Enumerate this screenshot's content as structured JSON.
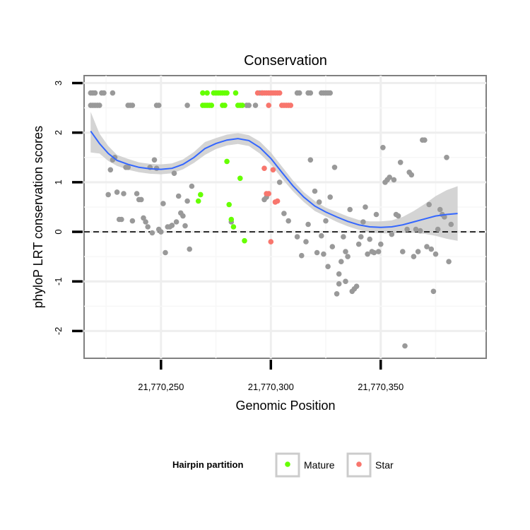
{
  "chart_data": {
    "type": "scatter",
    "title": "Conservation",
    "xlabel": "Genomic Position",
    "ylabel": "phyloP LRT conservation scores",
    "xlim": [
      21770215,
      21770398
    ],
    "ylim": [
      -2.55,
      3.15
    ],
    "x_ticks": [
      {
        "value": 21770250,
        "label": "21,770,250"
      },
      {
        "value": 21770300,
        "label": "21,770,300"
      },
      {
        "value": 21770350,
        "label": "21,770,350"
      }
    ],
    "y_ticks": [
      {
        "value": -2,
        "label": "-2"
      },
      {
        "value": -1,
        "label": "-1"
      },
      {
        "value": 0,
        "label": "0"
      },
      {
        "value": 1,
        "label": "1"
      },
      {
        "value": 2,
        "label": "2"
      },
      {
        "value": 3,
        "label": "3"
      }
    ],
    "reference_line": {
      "y": 0,
      "style": "dashed"
    },
    "legend": {
      "title": "Hairpin partition",
      "placement": "bottom",
      "entries": [
        {
          "label": "Mature",
          "color": "#66ff00"
        },
        {
          "label": "Star",
          "color": "#f8766d"
        }
      ]
    },
    "colors": {
      "other": "#999999",
      "mature": "#66ff00",
      "star": "#f8766d",
      "smooth": "#3366ff",
      "band": "#cccccc"
    },
    "series": [
      {
        "name": "Other",
        "color": "#999999",
        "points": [
          [
            21770218,
            2.8
          ],
          [
            21770219,
            2.8
          ],
          [
            21770220,
            2.8
          ],
          [
            21770223,
            2.8
          ],
          [
            21770224,
            2.8
          ],
          [
            21770228,
            2.8
          ],
          [
            21770218,
            2.55
          ],
          [
            21770219,
            2.55
          ],
          [
            21770220,
            2.55
          ],
          [
            21770221,
            2.55
          ],
          [
            21770222,
            2.55
          ],
          [
            21770235,
            2.55
          ],
          [
            21770236,
            2.55
          ],
          [
            21770237,
            2.55
          ],
          [
            21770248,
            2.55
          ],
          [
            21770249,
            2.55
          ],
          [
            21770262,
            2.55
          ],
          [
            21770295,
            2.8
          ],
          [
            21770296,
            2.8
          ],
          [
            21770312,
            2.8
          ],
          [
            21770313,
            2.8
          ],
          [
            21770317,
            2.8
          ],
          [
            21770318,
            2.8
          ],
          [
            21770323,
            2.8
          ],
          [
            21770324,
            2.8
          ],
          [
            21770325,
            2.8
          ],
          [
            21770326,
            2.8
          ],
          [
            21770327,
            2.8
          ],
          [
            21770289,
            2.55
          ],
          [
            21770290,
            2.55
          ],
          [
            21770293,
            2.55
          ],
          [
            21770226,
            0.75
          ],
          [
            21770227,
            1.25
          ],
          [
            21770228,
            1.45
          ],
          [
            21770229,
            1.5
          ],
          [
            21770230,
            0.8
          ],
          [
            21770231,
            0.25
          ],
          [
            21770232,
            0.25
          ],
          [
            21770234,
            1.3
          ],
          [
            21770235,
            1.3
          ],
          [
            21770233,
            0.77
          ],
          [
            21770237,
            0.22
          ],
          [
            21770239,
            0.77
          ],
          [
            21770240,
            0.65
          ],
          [
            21770241,
            0.65
          ],
          [
            21770242,
            0.28
          ],
          [
            21770243,
            0.2
          ],
          [
            21770244,
            0.1
          ],
          [
            21770245,
            1.3
          ],
          [
            21770246,
            -0.02
          ],
          [
            21770247,
            1.45
          ],
          [
            21770248,
            1.28
          ],
          [
            21770249,
            0.05
          ],
          [
            21770250,
            0.0
          ],
          [
            21770251,
            0.57
          ],
          [
            21770252,
            -0.42
          ],
          [
            21770253,
            0.1
          ],
          [
            21770254,
            0.1
          ],
          [
            21770255,
            0.13
          ],
          [
            21770256,
            1.18
          ],
          [
            21770257,
            0.2
          ],
          [
            21770258,
            0.72
          ],
          [
            21770259,
            0.38
          ],
          [
            21770260,
            0.32
          ],
          [
            21770261,
            0.12
          ],
          [
            21770262,
            0.62
          ],
          [
            21770263,
            -0.35
          ],
          [
            21770264,
            0.92
          ],
          [
            21770282,
            0.2
          ],
          [
            21770297,
            0.65
          ],
          [
            21770298,
            0.7
          ],
          [
            21770304,
            1.0
          ],
          [
            21770306,
            0.37
          ],
          [
            21770308,
            0.22
          ],
          [
            21770312,
            -0.1
          ],
          [
            21770314,
            -0.48
          ],
          [
            21770316,
            -0.2
          ],
          [
            21770317,
            0.15
          ],
          [
            21770318,
            1.45
          ],
          [
            21770320,
            0.82
          ],
          [
            21770321,
            -0.42
          ],
          [
            21770322,
            0.6
          ],
          [
            21770323,
            -0.08
          ],
          [
            21770324,
            -0.45
          ],
          [
            21770325,
            0.22
          ],
          [
            21770326,
            -0.7
          ],
          [
            21770327,
            0.7
          ],
          [
            21770328,
            -0.3
          ],
          [
            21770329,
            1.3
          ],
          [
            21770330,
            -1.25
          ],
          [
            21770331,
            -1.05
          ],
          [
            21770331,
            -0.85
          ],
          [
            21770332,
            -0.6
          ],
          [
            21770333,
            -0.1
          ],
          [
            21770334,
            -0.4
          ],
          [
            21770334,
            -1.0
          ],
          [
            21770335,
            -0.5
          ],
          [
            21770336,
            0.45
          ],
          [
            21770337,
            -1.2
          ],
          [
            21770338,
            -1.15
          ],
          [
            21770339,
            -1.1
          ],
          [
            21770340,
            -0.25
          ],
          [
            21770341,
            -0.1
          ],
          [
            21770342,
            0.2
          ],
          [
            21770343,
            0.5
          ],
          [
            21770344,
            -0.45
          ],
          [
            21770345,
            -0.15
          ],
          [
            21770346,
            -0.4
          ],
          [
            21770347,
            -0.42
          ],
          [
            21770348,
            0.35
          ],
          [
            21770349,
            -0.4
          ],
          [
            21770350,
            -0.25
          ],
          [
            21770351,
            1.7
          ],
          [
            21770352,
            1.0
          ],
          [
            21770353,
            1.05
          ],
          [
            21770354,
            1.1
          ],
          [
            21770355,
            -0.05
          ],
          [
            21770356,
            1.05
          ],
          [
            21770357,
            0.35
          ],
          [
            21770358,
            0.32
          ],
          [
            21770359,
            1.4
          ],
          [
            21770360,
            -0.4
          ],
          [
            21770361,
            -2.3
          ],
          [
            21770362,
            0.05
          ],
          [
            21770363,
            1.2
          ],
          [
            21770364,
            1.15
          ],
          [
            21770365,
            -0.5
          ],
          [
            21770366,
            0.05
          ],
          [
            21770367,
            -0.4
          ],
          [
            21770368,
            0.02
          ],
          [
            21770369,
            1.85
          ],
          [
            21770370,
            1.85
          ],
          [
            21770371,
            -0.3
          ],
          [
            21770372,
            0.55
          ],
          [
            21770373,
            -0.35
          ],
          [
            21770374,
            -1.2
          ],
          [
            21770375,
            -0.45
          ],
          [
            21770376,
            0.05
          ],
          [
            21770377,
            0.45
          ],
          [
            21770378,
            0.35
          ],
          [
            21770379,
            0.3
          ],
          [
            21770380,
            1.5
          ],
          [
            21770381,
            -0.6
          ],
          [
            21770382,
            0.15
          ]
        ]
      },
      {
        "name": "Mature",
        "color": "#66ff00",
        "points": [
          [
            21770269,
            2.8
          ],
          [
            21770271,
            2.8
          ],
          [
            21770274,
            2.8
          ],
          [
            21770275,
            2.8
          ],
          [
            21770276,
            2.8
          ],
          [
            21770277,
            2.8
          ],
          [
            21770278,
            2.8
          ],
          [
            21770279,
            2.8
          ],
          [
            21770280,
            2.8
          ],
          [
            21770284,
            2.8
          ],
          [
            21770269,
            2.55
          ],
          [
            21770270,
            2.55
          ],
          [
            21770271,
            2.55
          ],
          [
            21770272,
            2.55
          ],
          [
            21770273,
            2.55
          ],
          [
            21770278,
            2.55
          ],
          [
            21770279,
            2.55
          ],
          [
            21770285,
            2.55
          ],
          [
            21770286,
            2.55
          ],
          [
            21770287,
            2.55
          ],
          [
            21770267,
            0.62
          ],
          [
            21770268,
            0.75
          ],
          [
            21770280,
            1.42
          ],
          [
            21770281,
            0.55
          ],
          [
            21770282,
            0.25
          ],
          [
            21770283,
            0.1
          ],
          [
            21770286,
            1.08
          ],
          [
            21770288,
            -0.18
          ]
        ]
      },
      {
        "name": "Star",
        "color": "#f8766d",
        "points": [
          [
            21770294,
            2.8
          ],
          [
            21770296,
            2.8
          ],
          [
            21770297,
            2.8
          ],
          [
            21770298,
            2.8
          ],
          [
            21770299,
            2.8
          ],
          [
            21770300,
            2.8
          ],
          [
            21770301,
            2.8
          ],
          [
            21770302,
            2.8
          ],
          [
            21770303,
            2.8
          ],
          [
            21770304,
            2.8
          ],
          [
            21770299,
            2.55
          ],
          [
            21770305,
            2.55
          ],
          [
            21770306,
            2.55
          ],
          [
            21770307,
            2.55
          ],
          [
            21770308,
            2.55
          ],
          [
            21770309,
            2.55
          ],
          [
            21770297,
            1.28
          ],
          [
            21770298,
            0.77
          ],
          [
            21770299,
            0.77
          ],
          [
            21770300,
            -0.2
          ],
          [
            21770301,
            1.25
          ],
          [
            21770302,
            0.6
          ],
          [
            21770303,
            0.62
          ]
        ]
      }
    ],
    "smooth_line": {
      "x": [
        21770218,
        21770222,
        21770226,
        21770230,
        21770235,
        21770240,
        21770245,
        21770250,
        21770255,
        21770260,
        21770265,
        21770270,
        21770275,
        21770280,
        21770285,
        21770290,
        21770295,
        21770300,
        21770305,
        21770310,
        21770315,
        21770320,
        21770325,
        21770330,
        21770335,
        21770340,
        21770345,
        21770350,
        21770355,
        21770360,
        21770365,
        21770370,
        21770375,
        21770380,
        21770385
      ],
      "y": [
        2.03,
        1.78,
        1.58,
        1.44,
        1.36,
        1.3,
        1.27,
        1.26,
        1.28,
        1.36,
        1.5,
        1.68,
        1.78,
        1.85,
        1.88,
        1.84,
        1.7,
        1.48,
        1.2,
        0.93,
        0.7,
        0.52,
        0.4,
        0.3,
        0.21,
        0.14,
        0.1,
        0.09,
        0.1,
        0.14,
        0.2,
        0.26,
        0.32,
        0.35,
        0.37
      ],
      "lower": [
        1.6,
        1.58,
        1.43,
        1.33,
        1.25,
        1.2,
        1.17,
        1.16,
        1.18,
        1.26,
        1.39,
        1.55,
        1.67,
        1.74,
        1.77,
        1.73,
        1.58,
        1.36,
        1.08,
        0.82,
        0.6,
        0.42,
        0.31,
        0.2,
        0.11,
        0.04,
        -0.01,
        -0.03,
        -0.03,
        -0.02,
        -0.02,
        -0.04,
        -0.08,
        -0.14,
        -0.18
      ],
      "upper": [
        2.42,
        1.98,
        1.73,
        1.55,
        1.47,
        1.4,
        1.37,
        1.36,
        1.38,
        1.46,
        1.61,
        1.81,
        1.89,
        1.96,
        1.99,
        1.95,
        1.82,
        1.6,
        1.32,
        1.04,
        0.8,
        0.62,
        0.49,
        0.4,
        0.31,
        0.24,
        0.21,
        0.21,
        0.23,
        0.3,
        0.42,
        0.56,
        0.72,
        0.84,
        0.92
      ]
    }
  }
}
